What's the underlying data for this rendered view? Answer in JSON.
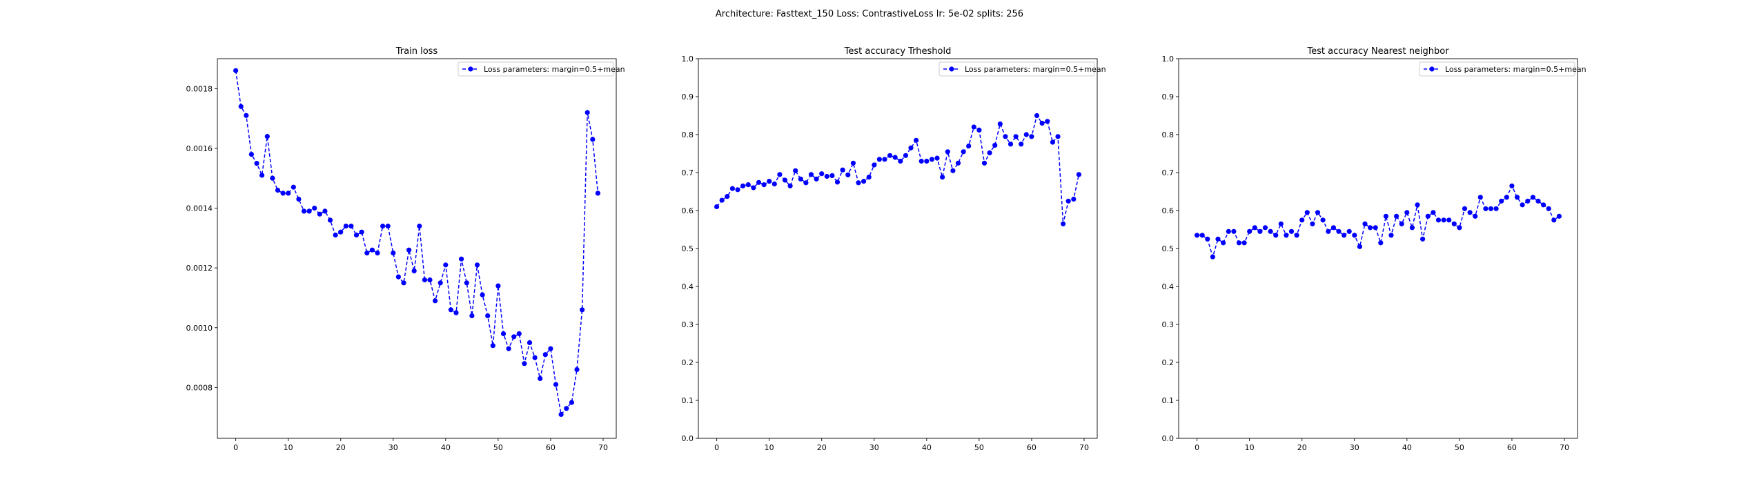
{
  "figure": {
    "suptitle": "Architecture: Fasttext_150 Loss: ContrastiveLoss lr: 5e-02 splits: 256"
  },
  "colors": {
    "series": "#0000ff",
    "axes": "#000000",
    "legend_border": "#cccccc"
  },
  "chart_data": [
    {
      "type": "line",
      "title": "Train loss",
      "xlabel": "",
      "ylabel": "",
      "xlim": [
        -3.5,
        72.5
      ],
      "ylim": [
        0.00063,
        0.0019
      ],
      "xticks": [
        0,
        10,
        20,
        30,
        40,
        50,
        60,
        70
      ],
      "xtick_labels": [
        "0",
        "10",
        "20",
        "30",
        "40",
        "50",
        "60",
        "70"
      ],
      "yticks": [
        0.0008,
        0.001,
        0.0012,
        0.0014,
        0.0016,
        0.0018
      ],
      "ytick_labels": [
        "0.0008",
        "0.0010",
        "0.0012",
        "0.0014",
        "0.0016",
        "0.0018"
      ],
      "grid": false,
      "legend_position": "upper right",
      "series": [
        {
          "name": "Loss parameters: margin=0.5+mean",
          "line_style": "dashed",
          "marker": "circle",
          "values": [
            0.00186,
            0.00174,
            0.00171,
            0.00158,
            0.00155,
            0.00151,
            0.00164,
            0.0015,
            0.00146,
            0.00145,
            0.00145,
            0.00147,
            0.00143,
            0.00139,
            0.00139,
            0.0014,
            0.00138,
            0.00139,
            0.00136,
            0.00131,
            0.00132,
            0.00134,
            0.00134,
            0.00131,
            0.00132,
            0.00125,
            0.00126,
            0.00125,
            0.00134,
            0.00134,
            0.00125,
            0.00117,
            0.00115,
            0.00126,
            0.00119,
            0.00134,
            0.00116,
            0.00116,
            0.00109,
            0.00115,
            0.00121,
            0.00106,
            0.00105,
            0.00123,
            0.00115,
            0.00104,
            0.00121,
            0.00111,
            0.00104,
            0.00094,
            0.00114,
            0.00098,
            0.00093,
            0.00097,
            0.00098,
            0.00088,
            0.00095,
            0.0009,
            0.00083,
            0.00091,
            0.00093,
            0.00081,
            0.00071,
            0.00073,
            0.00075,
            0.00086,
            0.00106,
            0.00172,
            0.00163,
            0.00145
          ]
        }
      ]
    },
    {
      "type": "line",
      "title": "Test accuracy Trheshold",
      "xlabel": "",
      "ylabel": "",
      "xlim": [
        -3.5,
        72.5
      ],
      "ylim": [
        0.0,
        1.0
      ],
      "xticks": [
        0,
        10,
        20,
        30,
        40,
        50,
        60,
        70
      ],
      "xtick_labels": [
        "0",
        "10",
        "20",
        "30",
        "40",
        "50",
        "60",
        "70"
      ],
      "yticks": [
        0.0,
        0.1,
        0.2,
        0.3,
        0.4,
        0.5,
        0.6,
        0.7,
        0.8,
        0.9,
        1.0
      ],
      "ytick_labels": [
        "0.0",
        "0.1",
        "0.2",
        "0.3",
        "0.4",
        "0.5",
        "0.6",
        "0.7",
        "0.8",
        "0.9",
        "1.0"
      ],
      "grid": false,
      "legend_position": "upper right",
      "series": [
        {
          "name": "Loss parameters: margin=0.5+mean",
          "line_style": "dashed",
          "marker": "circle",
          "values": [
            0.61,
            0.627,
            0.637,
            0.658,
            0.655,
            0.665,
            0.668,
            0.66,
            0.674,
            0.668,
            0.677,
            0.67,
            0.695,
            0.68,
            0.665,
            0.705,
            0.683,
            0.673,
            0.695,
            0.683,
            0.697,
            0.69,
            0.692,
            0.675,
            0.707,
            0.694,
            0.725,
            0.673,
            0.677,
            0.688,
            0.72,
            0.735,
            0.735,
            0.745,
            0.74,
            0.73,
            0.745,
            0.765,
            0.785,
            0.73,
            0.73,
            0.735,
            0.738,
            0.688,
            0.755,
            0.705,
            0.725,
            0.755,
            0.77,
            0.82,
            0.812,
            0.725,
            0.752,
            0.772,
            0.828,
            0.795,
            0.775,
            0.795,
            0.775,
            0.8,
            0.795,
            0.85,
            0.83,
            0.835,
            0.78,
            0.795,
            0.565,
            0.625,
            0.63,
            0.695
          ]
        }
      ]
    },
    {
      "type": "line",
      "title": "Test accuracy Nearest neighbor",
      "xlabel": "",
      "ylabel": "",
      "xlim": [
        -3.5,
        72.5
      ],
      "ylim": [
        0.0,
        1.0
      ],
      "xticks": [
        0,
        10,
        20,
        30,
        40,
        50,
        60,
        70
      ],
      "xtick_labels": [
        "0",
        "10",
        "20",
        "30",
        "40",
        "50",
        "60",
        "70"
      ],
      "yticks": [
        0.0,
        0.1,
        0.2,
        0.3,
        0.4,
        0.5,
        0.6,
        0.7,
        0.8,
        0.9,
        1.0
      ],
      "ytick_labels": [
        "0.0",
        "0.1",
        "0.2",
        "0.3",
        "0.4",
        "0.5",
        "0.6",
        "0.7",
        "0.8",
        "0.9",
        "1.0"
      ],
      "grid": false,
      "legend_position": "upper right",
      "series": [
        {
          "name": "Loss parameters: margin=0.5+mean",
          "line_style": "dashed",
          "marker": "circle",
          "values": [
            0.535,
            0.535,
            0.525,
            0.478,
            0.525,
            0.515,
            0.545,
            0.545,
            0.515,
            0.515,
            0.545,
            0.555,
            0.545,
            0.555,
            0.545,
            0.535,
            0.565,
            0.535,
            0.545,
            0.535,
            0.575,
            0.595,
            0.565,
            0.595,
            0.575,
            0.545,
            0.555,
            0.545,
            0.535,
            0.545,
            0.535,
            0.505,
            0.565,
            0.555,
            0.555,
            0.515,
            0.585,
            0.535,
            0.585,
            0.565,
            0.595,
            0.555,
            0.615,
            0.525,
            0.585,
            0.595,
            0.575,
            0.575,
            0.575,
            0.565,
            0.555,
            0.605,
            0.595,
            0.585,
            0.635,
            0.605,
            0.605,
            0.605,
            0.625,
            0.635,
            0.665,
            0.635,
            0.615,
            0.625,
            0.635,
            0.625,
            0.615,
            0.605,
            0.575,
            0.585
          ]
        }
      ]
    }
  ]
}
